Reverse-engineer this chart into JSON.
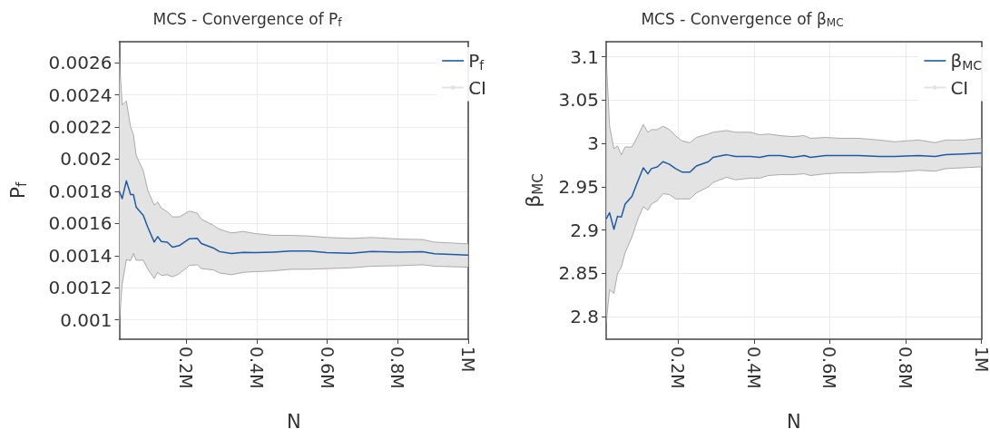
{
  "chart_data": [
    {
      "type": "line",
      "title": "MCS - Convergence of P$_{f}$",
      "xlabel": "N",
      "ylabel": "P$_{f}$",
      "xlim": [
        10000,
        1000000
      ],
      "xticks": [
        {
          "value": 200000,
          "label": "0.2M"
        },
        {
          "value": 400000,
          "label": "0.4M"
        },
        {
          "value": 600000,
          "label": "0.6M"
        },
        {
          "value": 800000,
          "label": "0.8M"
        },
        {
          "value": 1000000,
          "label": "1M"
        }
      ],
      "ylim": [
        0.00088,
        0.00273
      ],
      "yticks": [
        0.001,
        0.0012,
        0.0014,
        0.0016,
        0.0018,
        0.002,
        0.0022,
        0.0024,
        0.0026
      ],
      "grid": true,
      "legend": "top right",
      "annotations": [
        "CI"
      ],
      "series": [
        {
          "name": "P$_{f}$",
          "color": "#1f5aa6",
          "x": [
            10000,
            18000,
            30000,
            42000,
            50000,
            58000,
            78000,
            91000,
            109000,
            119000,
            129000,
            146000,
            161000,
            180000,
            209000,
            231000,
            243000,
            277000,
            294000,
            328000,
            362000,
            396000,
            447000,
            497000,
            548000,
            599000,
            667000,
            726000,
            803000,
            870000,
            904000,
            1000000
          ],
          "values": [
            0.0018,
            0.001754,
            0.001865,
            0.00178,
            0.00178,
            0.0017,
            0.00165,
            0.001575,
            0.001484,
            0.001518,
            0.001488,
            0.001484,
            0.001452,
            0.001462,
            0.001505,
            0.001507,
            0.001475,
            0.001447,
            0.001425,
            0.001413,
            0.00142,
            0.001418,
            0.001422,
            0.001428,
            0.001428,
            0.001418,
            0.001415,
            0.001426,
            0.001422,
            0.001424,
            0.001411,
            0.001403
          ],
          "upper": [
            0.002634,
            0.002337,
            0.002361,
            0.0022,
            0.002153,
            0.002022,
            0.001927,
            0.001805,
            0.001714,
            0.001733,
            0.001696,
            0.001673,
            0.001641,
            0.001641,
            0.001677,
            0.001664,
            0.001626,
            0.001588,
            0.001564,
            0.001541,
            0.00155,
            0.001537,
            0.001526,
            0.001526,
            0.001522,
            0.001513,
            0.001507,
            0.001513,
            0.001503,
            0.0015,
            0.001484,
            0.001473
          ],
          "lower": [
            0.000975,
            0.001221,
            0.001375,
            0.001368,
            0.001413,
            0.001371,
            0.001371,
            0.001315,
            0.001258,
            0.001296,
            0.001277,
            0.001281,
            0.001268,
            0.001287,
            0.001339,
            0.001343,
            0.001319,
            0.001311,
            0.001292,
            0.001281,
            0.001296,
            0.0013,
            0.001305,
            0.001315,
            0.001315,
            0.001319,
            0.001324,
            0.001334,
            0.001337,
            0.001343,
            0.001334,
            0.001328
          ]
        }
      ]
    },
    {
      "type": "line",
      "title": "MCS - Convergence of β$_{MC}$",
      "xlabel": "N",
      "ylabel": "β$_{MC}$",
      "xlim": [
        10000,
        1000000
      ],
      "xticks": [
        {
          "value": 200000,
          "label": "0.2M"
        },
        {
          "value": 400000,
          "label": "0.4M"
        },
        {
          "value": 600000,
          "label": "0.6M"
        },
        {
          "value": 800000,
          "label": "0.8M"
        },
        {
          "value": 1000000,
          "label": "1M"
        }
      ],
      "ylim": [
        2.774,
        3.1175
      ],
      "yticks": [
        2.8,
        2.85,
        2.9,
        2.95,
        3,
        3.05,
        3.1
      ],
      "grid": true,
      "legend": "top right",
      "annotations": [
        "CI"
      ],
      "series": [
        {
          "name": "β$_{MC}$",
          "color": "#1f5aa6",
          "x": [
            10000,
            19000,
            30500,
            40000,
            50000,
            60000,
            78000,
            94000,
            108000,
            120000,
            129500,
            145000,
            160000,
            177000,
            193000,
            210000,
            231000,
            248000,
            280000,
            292000,
            328000,
            351000,
            391000,
            415000,
            438000,
            470000,
            502000,
            533000,
            549000,
            589000,
            628000,
            676000,
            731000,
            771000,
            834000,
            878000,
            906000,
            953000,
            1000000
          ],
          "values": [
            2.913,
            2.92,
            2.901,
            2.916,
            2.915,
            2.93,
            2.939,
            2.957,
            2.972,
            2.965,
            2.971,
            2.973,
            2.979,
            2.976,
            2.971,
            2.967,
            2.967,
            2.974,
            2.979,
            2.984,
            2.987,
            2.985,
            2.985,
            2.984,
            2.986,
            2.986,
            2.984,
            2.986,
            2.984,
            2.986,
            2.986,
            2.986,
            2.985,
            2.985,
            2.986,
            2.985,
            2.987,
            2.988,
            2.989
          ],
          "upper": [
            3.1,
            3.02,
            2.994,
            2.997,
            2.987,
            2.996,
            2.996,
            3.009,
            3.022,
            3.013,
            3.016,
            3.016,
            3.02,
            3.016,
            3.009,
            3.003,
            3.001,
            3.007,
            3.011,
            3.013,
            3.015,
            3.013,
            3.013,
            3.01,
            3.011,
            3.009,
            3.008,
            3.009,
            3.006,
            3.007,
            3.006,
            3.006,
            3.004,
            3.002,
            3.004,
            3.001,
            3.004,
            3.004,
            3.006
          ],
          "lower": [
            2.792,
            2.831,
            2.827,
            2.85,
            2.857,
            2.874,
            2.892,
            2.913,
            2.927,
            2.923,
            2.93,
            2.934,
            2.942,
            2.941,
            2.936,
            2.936,
            2.936,
            2.943,
            2.95,
            2.955,
            2.961,
            2.958,
            2.96,
            2.96,
            2.963,
            2.964,
            2.964,
            2.965,
            2.963,
            2.965,
            2.966,
            2.966,
            2.967,
            2.967,
            2.969,
            2.968,
            2.971,
            2.972,
            2.973
          ]
        }
      ]
    }
  ]
}
